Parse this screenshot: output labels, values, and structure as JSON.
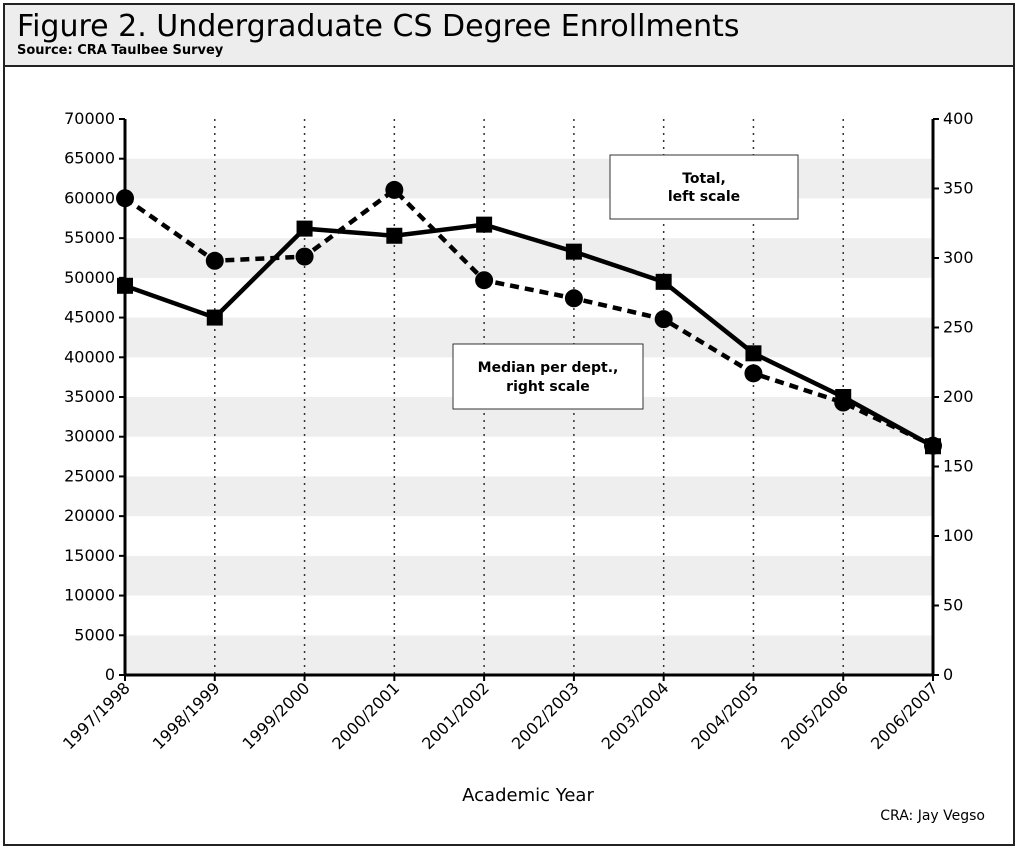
{
  "header": {
    "title": "Figure 2. Undergraduate CS Degree Enrollments",
    "subtitle": "Source: CRA Taulbee Survey"
  },
  "credit": "CRA: Jay Vegso",
  "chart_data": {
    "type": "line",
    "xlabel": "Academic Year",
    "ylabel_left": "",
    "ylabel_right": "",
    "categories": [
      "1997/1998",
      "1998/1999",
      "1999/2000",
      "2000/2001",
      "2001/2002",
      "2002/2003",
      "2003/2004",
      "2004/2005",
      "2005/2006",
      "2006/2007"
    ],
    "ylim_left": [
      0,
      70000
    ],
    "yticks_left": [
      0,
      5000,
      10000,
      15000,
      20000,
      25000,
      30000,
      35000,
      40000,
      45000,
      50000,
      55000,
      60000,
      65000,
      70000
    ],
    "ylim_right": [
      0,
      400
    ],
    "yticks_right": [
      0,
      50,
      100,
      150,
      200,
      250,
      300,
      350,
      400
    ],
    "grid": "horizontal bands, vertical dotted lines",
    "series": [
      {
        "name": "Total, left scale",
        "axis": "left",
        "style": "solid",
        "marker": "square",
        "values": [
          49000,
          45000,
          56200,
          55300,
          56700,
          53300,
          49500,
          40500,
          35000,
          28800
        ]
      },
      {
        "name": "Median per dept., right scale",
        "axis": "right",
        "style": "dashed",
        "marker": "circle",
        "values": [
          343,
          298,
          301,
          349,
          284,
          271,
          256,
          217,
          196,
          165
        ]
      }
    ],
    "annotations": [
      {
        "text_lines": [
          "Total,",
          "left scale"
        ]
      },
      {
        "text_lines": [
          "Median per dept.,",
          "right scale"
        ]
      }
    ]
  }
}
